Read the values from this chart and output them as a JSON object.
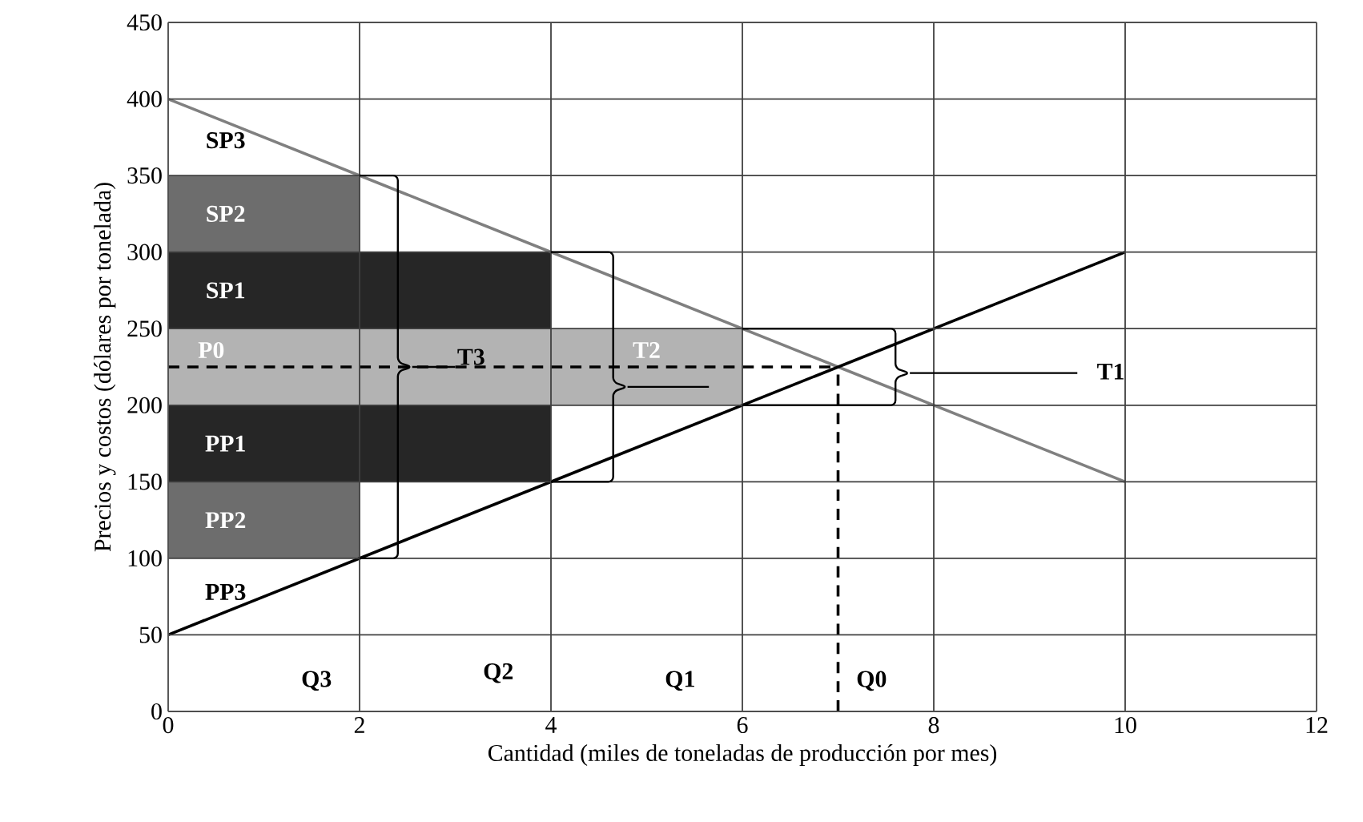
{
  "chart_data": {
    "type": "line",
    "xlabel": "Cantidad (miles de toneladas de producción por mes)",
    "ylabel": "Precios y costos (dólares por tonelada)",
    "xlim": [
      0,
      12
    ],
    "xticks": [
      0,
      2,
      4,
      6,
      8,
      10,
      12
    ],
    "ylim": [
      0,
      450
    ],
    "yticks": [
      0,
      50,
      100,
      150,
      200,
      250,
      300,
      350,
      400,
      450
    ],
    "grid": true,
    "series": [
      {
        "type": "bar",
        "color": "#6d6d6d",
        "x": [
          1
        ],
        "base": [
          100
        ],
        "values": [
          50
        ]
      },
      {
        "type": "bar",
        "color": "#262626",
        "x": [
          1,
          3
        ],
        "base": [
          150,
          150
        ],
        "values": [
          50,
          50
        ]
      },
      {
        "type": "bar",
        "color": "#b3b3b3",
        "x": [
          1,
          3,
          5
        ],
        "base": [
          200,
          200,
          200
        ],
        "values": [
          50,
          50,
          50
        ]
      },
      {
        "type": "bar",
        "color": "#262626",
        "x": [
          1,
          3
        ],
        "base": [
          250,
          250
        ],
        "values": [
          50,
          50
        ]
      },
      {
        "type": "bar",
        "color": "#6d6d6d",
        "x": [
          1
        ],
        "base": [
          300
        ],
        "values": [
          50
        ]
      },
      {
        "color": "#808080",
        "x": [
          0,
          10
        ],
        "values": [
          400,
          150
        ]
      },
      {
        "color": "#000000",
        "x": [
          0,
          10
        ],
        "values": [
          50,
          300
        ]
      },
      {
        "color": "#000000",
        "line_style": "dashed",
        "x": [
          0,
          7
        ],
        "values": [
          225,
          225
        ]
      },
      {
        "color": "#000000",
        "line_style": "dashed",
        "x": [
          7,
          7
        ],
        "values": [
          0,
          225
        ]
      }
    ],
    "annotations": [
      "SP3",
      "SP2",
      "SP1",
      "P0",
      "PP1",
      "PP2",
      "PP3",
      {
        "text": "T3",
        "x": 3.0,
        "y": 225
      },
      "T2",
      "T1",
      "Q3",
      "Q2",
      "Q1",
      "Q0"
    ]
  }
}
